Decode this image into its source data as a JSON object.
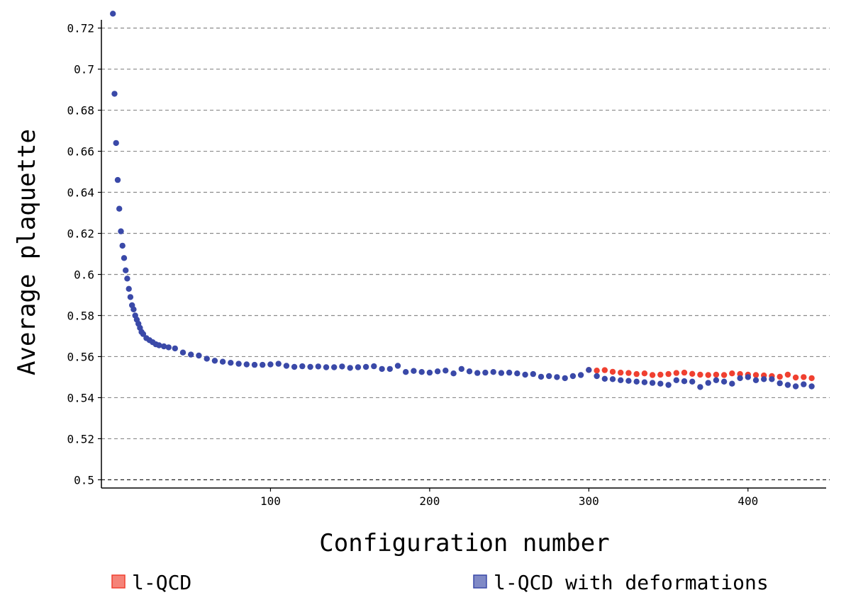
{
  "chart_data": {
    "type": "scatter",
    "xlabel": "Configuration number",
    "ylabel": "Average plaquette",
    "xlim": [
      0,
      450
    ],
    "ylim": [
      0.496,
      0.724
    ],
    "xticks": [
      100,
      200,
      300,
      400
    ],
    "yticks": [
      0.5,
      0.52,
      0.54,
      0.56,
      0.58,
      0.6,
      0.62,
      0.64,
      0.66,
      0.68,
      0.7,
      0.72
    ],
    "ytick_labels": [
      "0.5",
      "0.52",
      "0.54",
      "0.56",
      "0.58",
      "0.6",
      "0.62",
      "0.64",
      "0.66",
      "0.68",
      "0.7",
      "0.72"
    ],
    "grid": "horizontal dashed",
    "legend_position": "bottom",
    "series": [
      {
        "name": "l-QCD",
        "color": "#f04030",
        "x": [
          300,
          305,
          310,
          315,
          320,
          325,
          330,
          335,
          340,
          345,
          350,
          355,
          360,
          365,
          370,
          375,
          380,
          385,
          390,
          395,
          400,
          405,
          410,
          415,
          420,
          425,
          430,
          435,
          440
        ],
        "y": [
          0.5535,
          0.5532,
          0.5534,
          0.5526,
          0.5522,
          0.552,
          0.5515,
          0.5518,
          0.551,
          0.5512,
          0.5515,
          0.552,
          0.5522,
          0.5516,
          0.5512,
          0.551,
          0.5512,
          0.551,
          0.5518,
          0.5515,
          0.5512,
          0.551,
          0.5508,
          0.5505,
          0.5502,
          0.5512,
          0.5498,
          0.55,
          0.5495
        ]
      },
      {
        "name": "l-QCD with deformations",
        "color": "#3a49a8",
        "x": [
          1,
          2,
          3,
          4,
          5,
          6,
          7,
          8,
          9,
          10,
          11,
          12,
          13,
          14,
          15,
          16,
          17,
          18,
          19,
          20,
          22,
          24,
          26,
          28,
          30,
          33,
          36,
          40,
          45,
          50,
          55,
          60,
          65,
          70,
          75,
          80,
          85,
          90,
          95,
          100,
          105,
          110,
          115,
          120,
          125,
          130,
          135,
          140,
          145,
          150,
          155,
          160,
          165,
          170,
          175,
          180,
          185,
          190,
          195,
          200,
          205,
          210,
          215,
          220,
          225,
          230,
          235,
          240,
          245,
          250,
          255,
          260,
          265,
          270,
          275,
          280,
          285,
          290,
          295,
          300,
          305,
          310,
          315,
          320,
          325,
          330,
          335,
          340,
          345,
          350,
          355,
          360,
          365,
          370,
          375,
          380,
          385,
          390,
          395,
          400,
          405,
          410,
          415,
          420,
          425,
          430,
          435,
          440
        ],
        "y": [
          0.727,
          0.688,
          0.664,
          0.646,
          0.632,
          0.621,
          0.614,
          0.608,
          0.602,
          0.598,
          0.593,
          0.589,
          0.585,
          0.583,
          0.58,
          0.578,
          0.576,
          0.574,
          0.572,
          0.571,
          0.569,
          0.568,
          0.567,
          0.566,
          0.5655,
          0.565,
          0.5645,
          0.564,
          0.562,
          0.561,
          0.5605,
          0.559,
          0.558,
          0.5575,
          0.557,
          0.5565,
          0.5562,
          0.556,
          0.556,
          0.5562,
          0.5565,
          0.5555,
          0.555,
          0.5553,
          0.555,
          0.5552,
          0.5548,
          0.5548,
          0.5552,
          0.5545,
          0.5548,
          0.555,
          0.5553,
          0.554,
          0.554,
          0.5555,
          0.5525,
          0.553,
          0.5525,
          0.5522,
          0.5528,
          0.5532,
          0.5518,
          0.554,
          0.5528,
          0.552,
          0.5522,
          0.5525,
          0.552,
          0.5522,
          0.5518,
          0.5512,
          0.5515,
          0.5502,
          0.5505,
          0.55,
          0.5495,
          0.5505,
          0.551,
          0.5535,
          0.5505,
          0.5492,
          0.549,
          0.5485,
          0.5482,
          0.5478,
          0.5475,
          0.5472,
          0.5468,
          0.5462,
          0.5485,
          0.548,
          0.5478,
          0.5452,
          0.5472,
          0.5485,
          0.5478,
          0.5468,
          0.5495,
          0.55,
          0.5485,
          0.549,
          0.549,
          0.547,
          0.5462,
          0.5455,
          0.5465,
          0.5455
        ]
      }
    ]
  }
}
